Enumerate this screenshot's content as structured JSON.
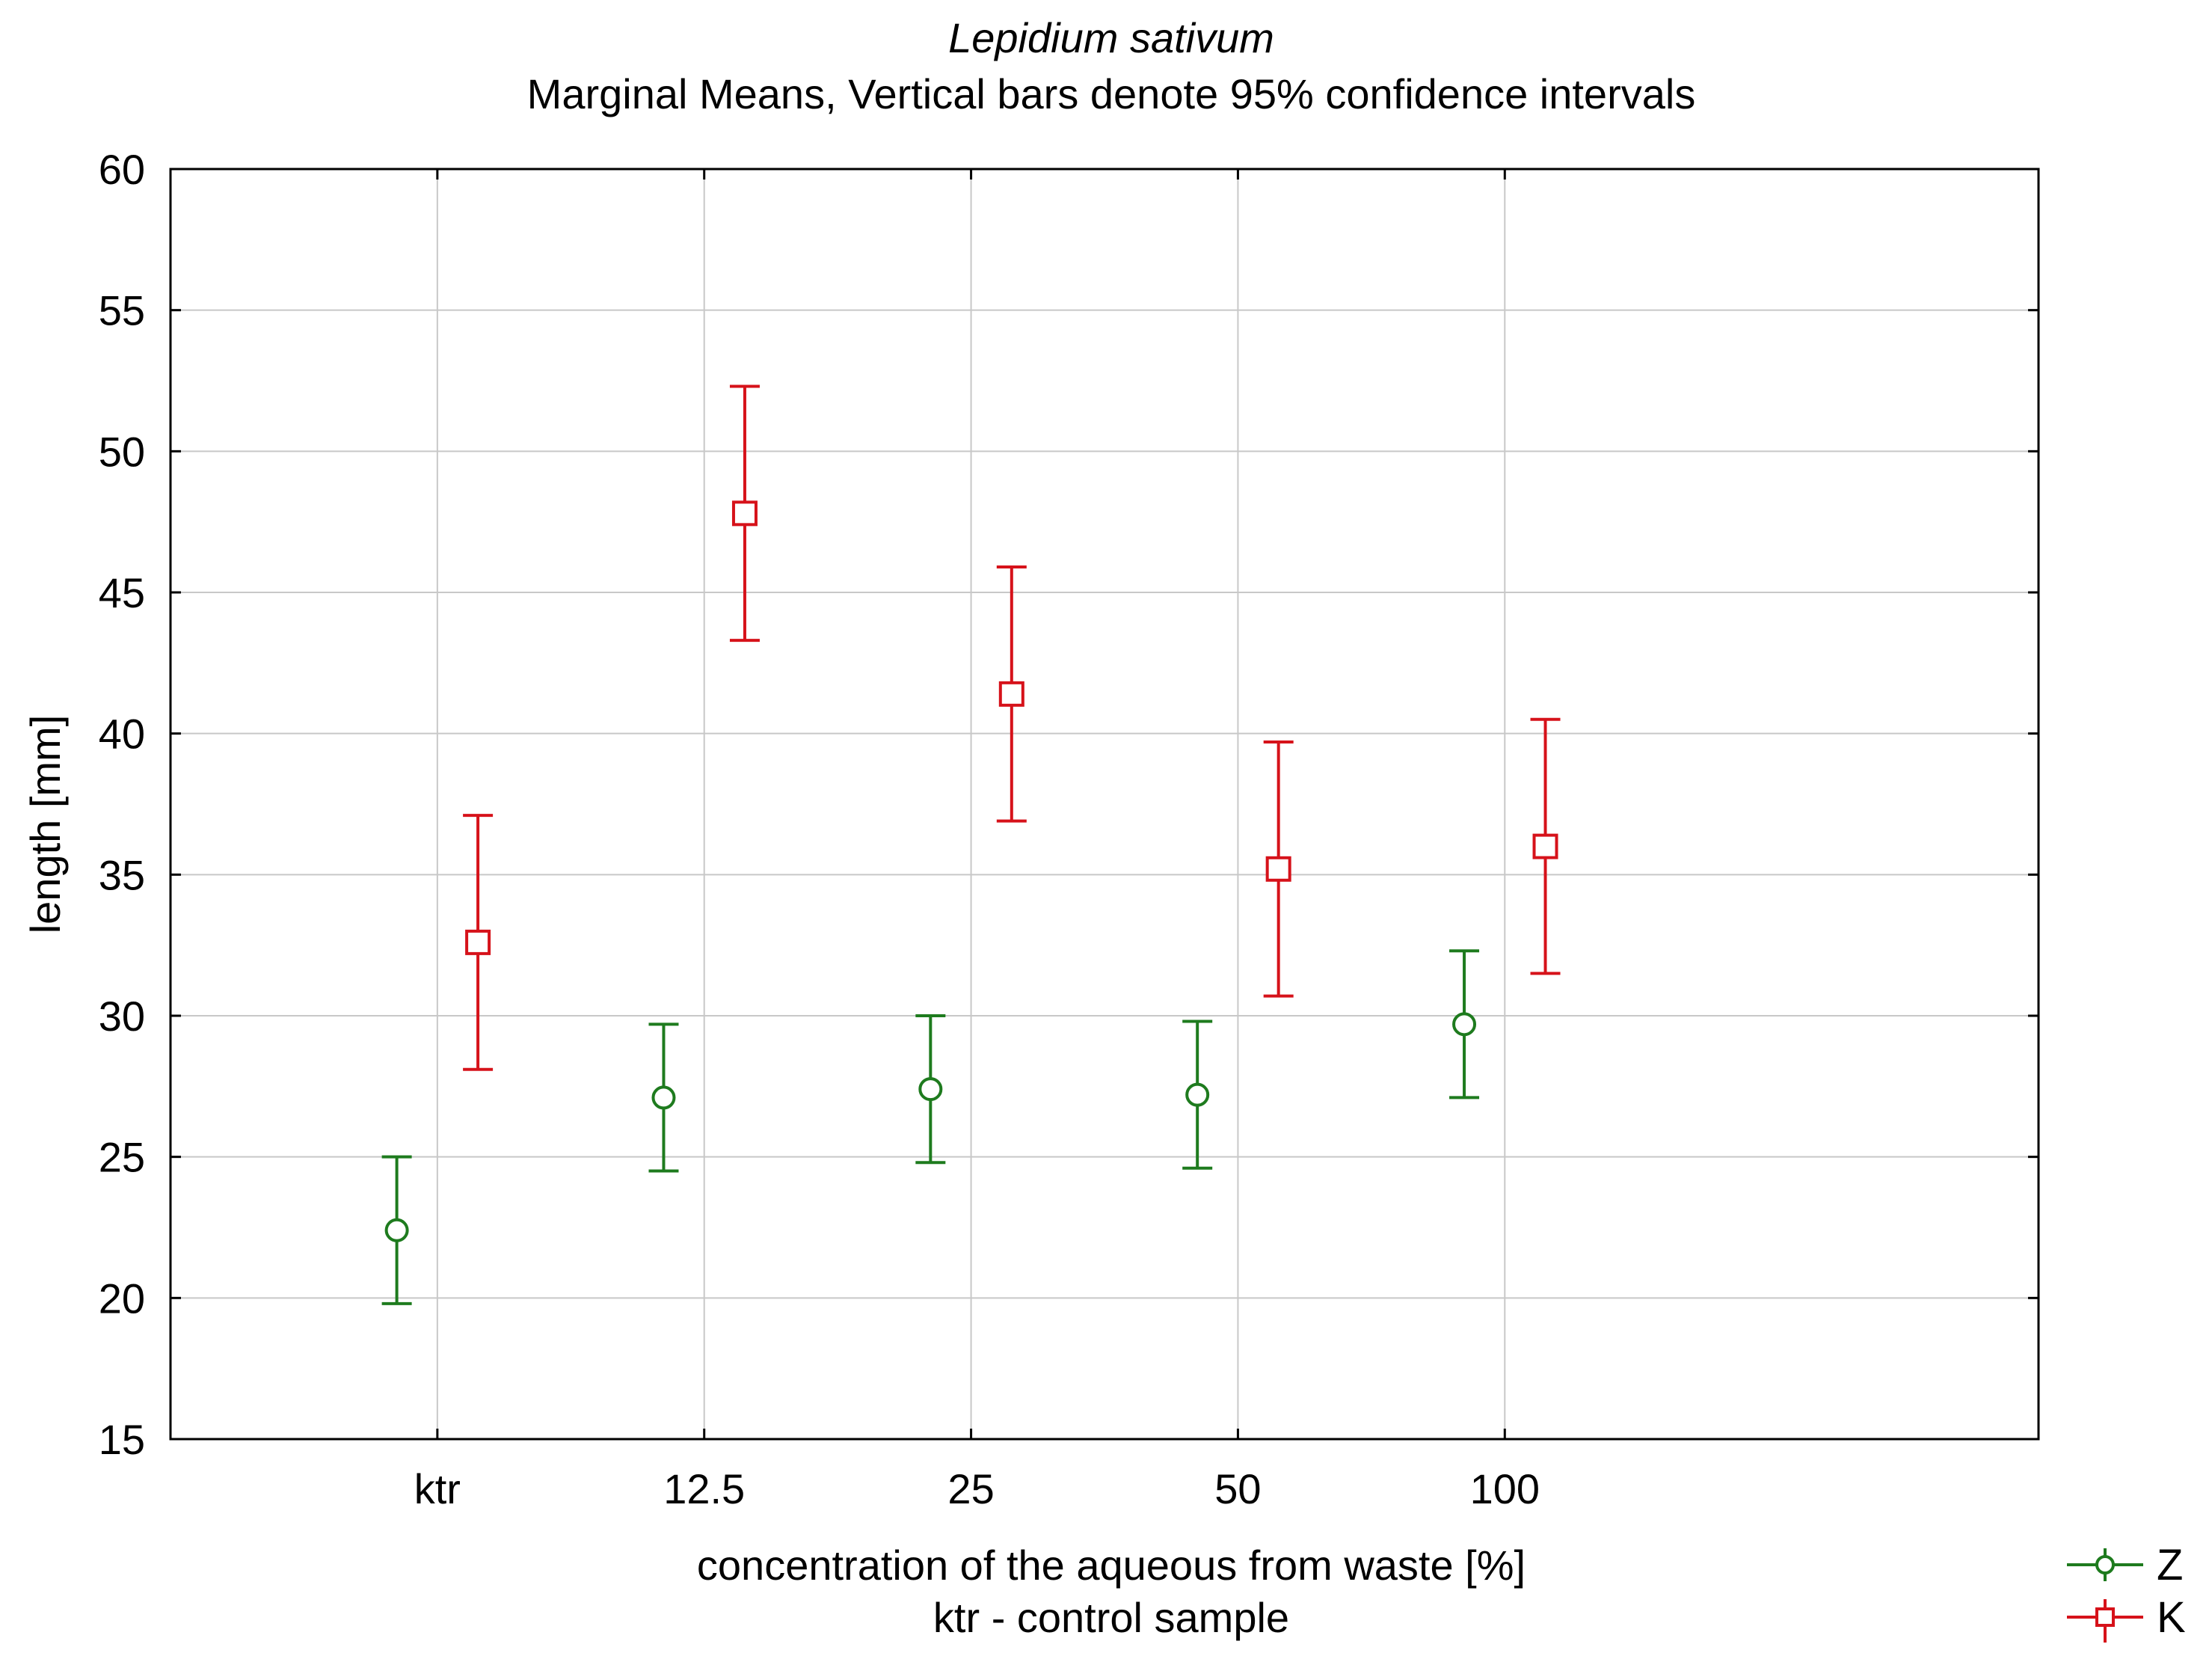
{
  "chart_data": {
    "type": "scatter",
    "title": "Lepidium sativum",
    "subtitle": "Marginal Means, Vertical bars denote 95% confidence intervals",
    "xlabel": "concentration of the aqueous from waste [%]",
    "xlabel_note": "ktr - control sample",
    "ylabel": "length [mm]",
    "categories": [
      "ktr",
      "12.5",
      "25",
      "50",
      "100"
    ],
    "ylim": [
      15,
      60
    ],
    "yticks": [
      "15",
      "20",
      "25",
      "30",
      "35",
      "40",
      "45",
      "50",
      "55",
      "60"
    ],
    "grid": true,
    "legend_position": "bottom-right",
    "series": [
      {
        "name": "Z",
        "marker": "circle",
        "color": "#1e7b1e",
        "offset": -0.08,
        "values": [
          22.4,
          27.1,
          27.4,
          27.2,
          29.7
        ],
        "lower": [
          19.8,
          24.5,
          24.8,
          24.6,
          27.1
        ],
        "upper": [
          25.0,
          29.7,
          30.0,
          29.8,
          32.3
        ]
      },
      {
        "name": "K",
        "marker": "square",
        "color": "#d6121a",
        "offset": 0.08,
        "values": [
          32.6,
          47.8,
          41.4,
          35.2,
          36.0
        ],
        "lower": [
          28.1,
          43.3,
          36.9,
          30.7,
          31.5
        ],
        "upper": [
          37.1,
          52.3,
          45.9,
          39.7,
          40.5
        ]
      }
    ]
  }
}
